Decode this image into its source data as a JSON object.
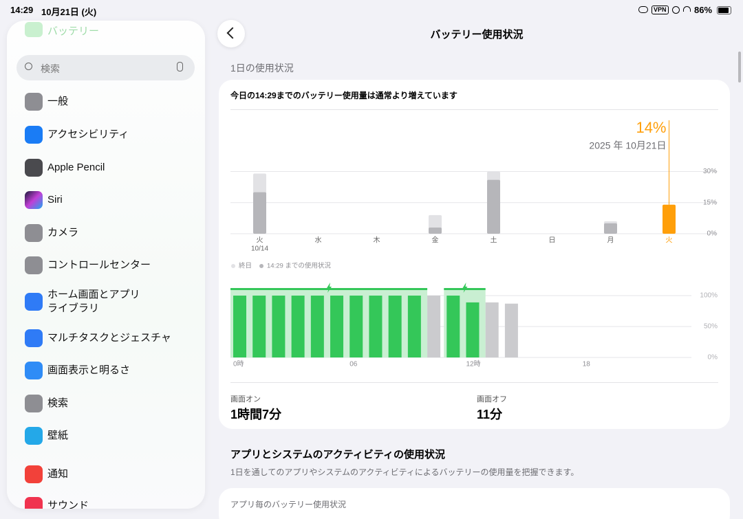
{
  "status_bar": {
    "time": "14:29",
    "date": "10月21日 (火)",
    "vpn": "VPN",
    "battery": "86%"
  },
  "sidebar": {
    "current": "バッテリー",
    "search_placeholder": "検索",
    "items": [
      "一般",
      "アクセシビリティ",
      "Apple Pencil",
      "Siri",
      "カメラ",
      "コントロールセンター",
      "ホーム画面とアプリ\nライブラリ",
      "マルチタスクとジェスチャ",
      "画面表示と明るさ",
      "検索",
      "壁紙",
      "通知",
      "サウンド"
    ]
  },
  "main": {
    "title": "バッテリー使用状況",
    "section_title": "1日の使用状況",
    "card_heading": "今日の14:29までのバッテリー使用量は通常より増えています",
    "screen_on_label": "画面オン",
    "screen_on": "1時間7分",
    "screen_off_label": "画面オフ",
    "screen_off": "11分",
    "activity_title": "アプリとシステムのアクティビティの使用状況",
    "activity_description": "1日を通してのアプリやシステムのアクティビティによるバッテリーの使用量を把握できます。",
    "per_app_title": "アプリ毎のバッテリー使用状況"
  },
  "chart_data": [
    {
      "type": "bar",
      "categories": [
        "火",
        "水",
        "木",
        "金",
        "土",
        "日",
        "月",
        "火"
      ],
      "category_sublabels": [
        "10/14",
        null,
        null,
        null,
        null,
        null,
        null,
        null
      ],
      "series": [
        {
          "name": "終日",
          "color": "#e2e2e5",
          "values": [
            29,
            0,
            0,
            9,
            30,
            0,
            6,
            null
          ]
        },
        {
          "name": "14:29 までの使用状況",
          "color": "#b6b6ba",
          "values": [
            20,
            0,
            0,
            3,
            26,
            0,
            5,
            14
          ],
          "value_labels": [
            null,
            null,
            null,
            null,
            null,
            null,
            null,
            "14%"
          ]
        }
      ],
      "highlight_color": "#ff9f0a",
      "selected_date": "2025 年 10月21日",
      "ylim": [
        0,
        30
      ],
      "yticks": [
        {
          "value": 0,
          "label": "0%"
        },
        {
          "value": 15,
          "label": "15%"
        },
        {
          "value": 30,
          "label": "30%"
        }
      ],
      "grid": true,
      "legend": "top-left"
    },
    {
      "type": "bar",
      "x": [
        0,
        1,
        2,
        3,
        4,
        5,
        6,
        7,
        8,
        9,
        10,
        11,
        12,
        13,
        14
      ],
      "series": [
        {
          "color": "#34c759",
          "values": [
            100,
            100,
            100,
            100,
            100,
            100,
            100,
            100,
            100,
            100,
            null,
            100,
            89,
            null,
            null
          ]
        },
        {
          "color": "#cbcbce",
          "values": [
            null,
            null,
            null,
            null,
            null,
            null,
            null,
            null,
            null,
            null,
            100,
            null,
            null,
            89,
            87
          ]
        }
      ],
      "charging": {
        "color": "#c9efd2",
        "periods": [
          [
            0,
            10
          ],
          [
            11,
            13
          ]
        ]
      },
      "xlim": [
        0,
        24
      ],
      "xticks": [
        {
          "value": 0,
          "label": "0時"
        },
        {
          "value": 6,
          "label": "06"
        },
        {
          "value": 12,
          "label": "12時"
        },
        {
          "value": 18,
          "label": "18"
        }
      ],
      "ylim": [
        0,
        100
      ],
      "yticks": [
        {
          "value": 0,
          "label": "0%"
        },
        {
          "value": 50,
          "label": "50%"
        },
        {
          "value": 100,
          "label": "100%"
        }
      ],
      "grid": true
    }
  ]
}
